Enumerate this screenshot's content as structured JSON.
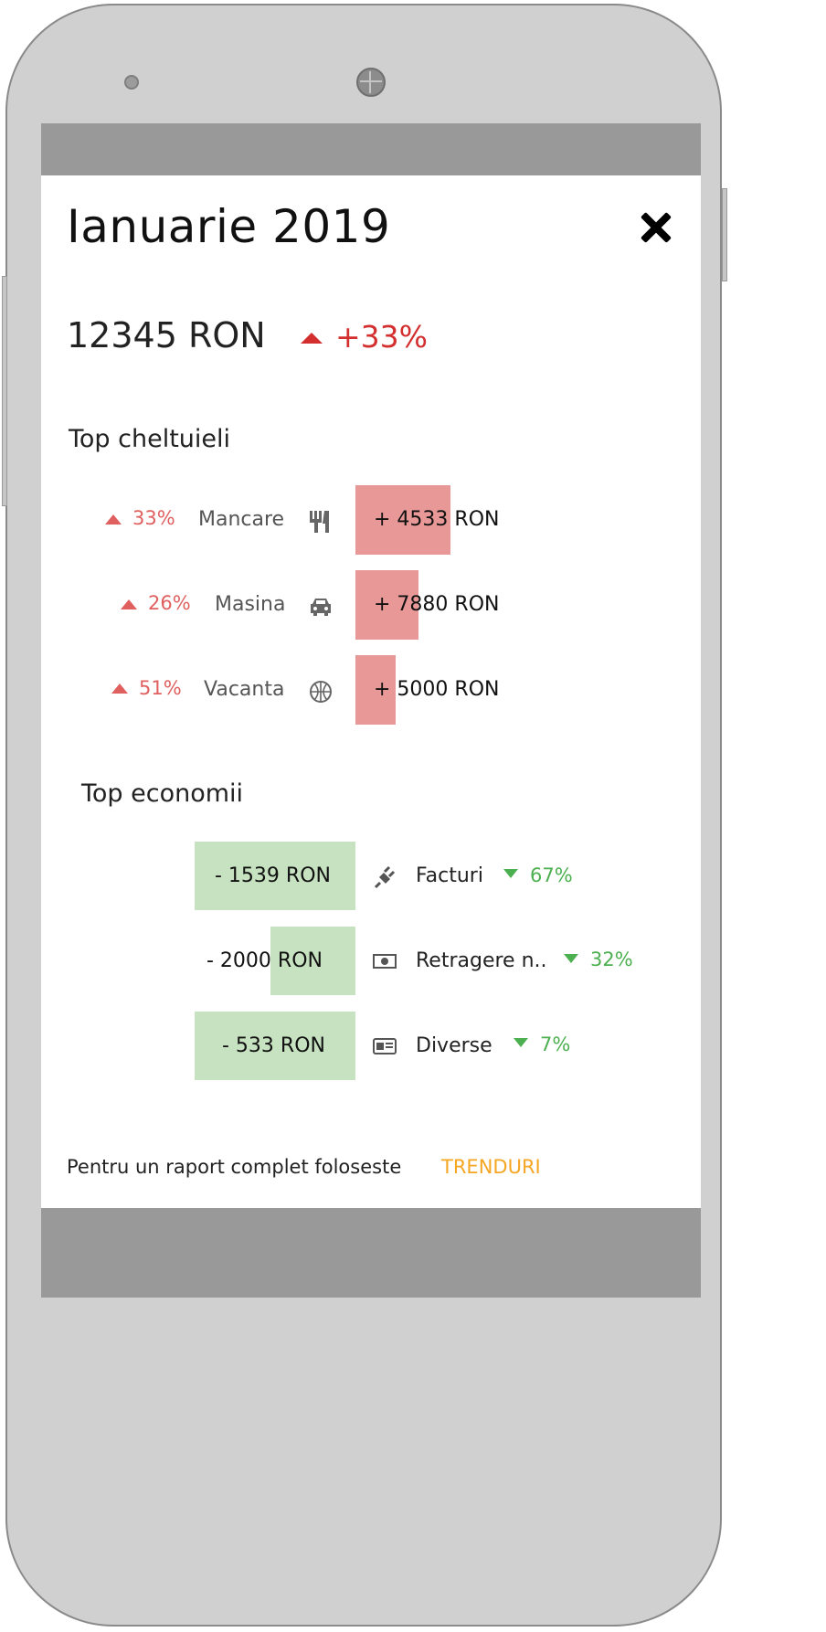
{
  "header": {
    "title": "Ianuarie 2019"
  },
  "summary": {
    "total": "12345 RON",
    "change": "+33%"
  },
  "top_expenses": {
    "heading": "Top cheltuieli",
    "items": [
      {
        "percent": "33%",
        "category": "Mancare",
        "icon": "utensils-icon",
        "amount": "+ 4533 RON"
      },
      {
        "percent": "26%",
        "category": "Masina",
        "icon": "car-icon",
        "amount": "+ 7880 RON"
      },
      {
        "percent": "51%",
        "category": "Vacanta",
        "icon": "basketball-icon",
        "amount": "+ 5000 RON"
      }
    ]
  },
  "top_savings": {
    "heading": "Top economii",
    "items": [
      {
        "amount": "- 1539 RON",
        "icon": "plug-icon",
        "category": "Facturi",
        "percent": "67%"
      },
      {
        "amount": "- 2000 RON",
        "icon": "money-icon",
        "category": "Retragere n..",
        "percent": "32%"
      },
      {
        "amount": "- 533 RON",
        "icon": "id-card-icon",
        "category": "Diverse",
        "percent": "7%"
      }
    ]
  },
  "footer": {
    "text": "Pentru un raport complet foloseste",
    "link": "TRENDURI"
  },
  "colors": {
    "negative": "#d32f2f",
    "expense_bar": "#e99898",
    "saving_bar": "#c7e2c0",
    "positive": "#4caf50",
    "link": "#f5a623"
  }
}
